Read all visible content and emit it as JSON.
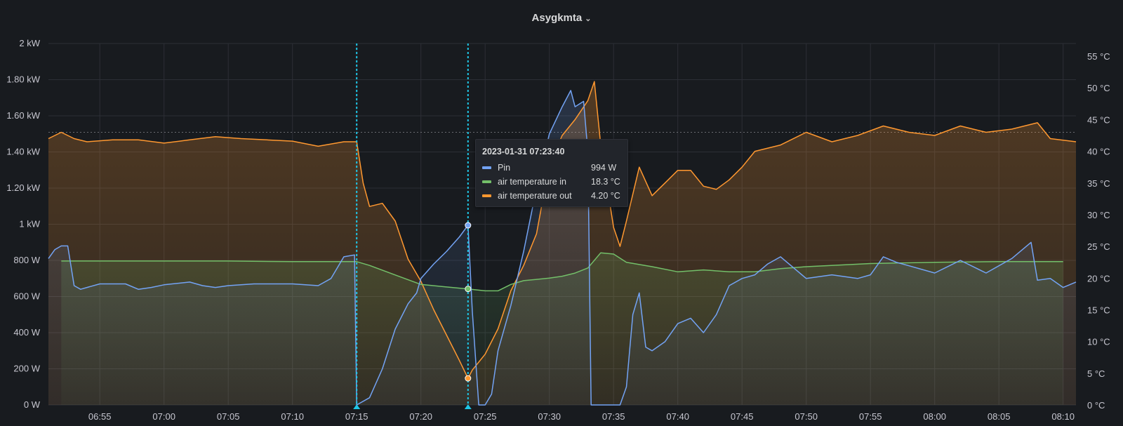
{
  "panel": {
    "title": "Asygkmta"
  },
  "tooltip": {
    "time": "2023-01-31 07:23:40",
    "rows": [
      {
        "label": "Pin",
        "value": "994 W",
        "color": "#73a3f4"
      },
      {
        "label": "air temperature in",
        "value": "18.3 °C",
        "color": "#73bf69"
      },
      {
        "label": "air temperature out",
        "value": "4.20 °C",
        "color": "#ff9830"
      }
    ]
  },
  "chart_data": {
    "type": "line",
    "xlabel": "",
    "ylabel": "",
    "grid": true,
    "x_ticks": [
      "06:55",
      "07:00",
      "07:05",
      "07:10",
      "07:15",
      "07:20",
      "07:25",
      "07:30",
      "07:35",
      "07:40",
      "07:45",
      "07:50",
      "07:55",
      "08:00",
      "08:05",
      "08:10"
    ],
    "y_left_ticks": [
      "0 W",
      "200 W",
      "400 W",
      "600 W",
      "800 W",
      "1 kW",
      "1.20 kW",
      "1.40 kW",
      "1.60 kW",
      "1.80 kW",
      "2 kW"
    ],
    "y_right_ticks": [
      "0 °C",
      "5 °C",
      "10 °C",
      "15 °C",
      "20 °C",
      "25 °C",
      "30 °C",
      "35 °C",
      "40 °C",
      "45 °C",
      "50 °C",
      "55 °C"
    ],
    "y_left_range_W": [
      0,
      2000
    ],
    "y_right_range_C": [
      0,
      57
    ],
    "x_range": [
      "06:51",
      "08:11"
    ],
    "threshold_C": 43,
    "markers": [
      "07:15:00",
      "07:23:40"
    ],
    "series": [
      {
        "name": "Pin",
        "axis": "left",
        "unit": "W",
        "color": "#73a3f4",
        "points": [
          [
            "06:51:00",
            810
          ],
          [
            "06:51:30",
            860
          ],
          [
            "06:52:00",
            880
          ],
          [
            "06:52:30",
            880
          ],
          [
            "06:53:00",
            660
          ],
          [
            "06:53:30",
            640
          ],
          [
            "06:54:00",
            650
          ],
          [
            "06:55:00",
            670
          ],
          [
            "06:56:00",
            670
          ],
          [
            "06:57:00",
            670
          ],
          [
            "06:58:00",
            640
          ],
          [
            "06:59:00",
            650
          ],
          [
            "07:00:00",
            665
          ],
          [
            "07:02:00",
            680
          ],
          [
            "07:03:00",
            660
          ],
          [
            "07:04:00",
            650
          ],
          [
            "07:05:00",
            660
          ],
          [
            "07:07:00",
            670
          ],
          [
            "07:10:00",
            670
          ],
          [
            "07:12:00",
            660
          ],
          [
            "07:13:00",
            700
          ],
          [
            "07:14:00",
            820
          ],
          [
            "07:14:50",
            830
          ],
          [
            "07:15:00",
            0
          ],
          [
            "07:16:00",
            40
          ],
          [
            "07:17:00",
            200
          ],
          [
            "07:18:00",
            420
          ],
          [
            "07:19:00",
            560
          ],
          [
            "07:19:40",
            620
          ],
          [
            "07:20:00",
            700
          ],
          [
            "07:21:00",
            780
          ],
          [
            "07:22:00",
            850
          ],
          [
            "07:23:00",
            930
          ],
          [
            "07:23:40",
            994
          ],
          [
            "07:24:00",
            520
          ],
          [
            "07:24:30",
            0
          ],
          [
            "07:25:00",
            0
          ],
          [
            "07:25:30",
            60
          ],
          [
            "07:26:00",
            300
          ],
          [
            "07:27:00",
            550
          ],
          [
            "07:28:00",
            850
          ],
          [
            "07:29:00",
            1200
          ],
          [
            "07:30:00",
            1500
          ],
          [
            "07:31:00",
            1650
          ],
          [
            "07:31:40",
            1740
          ],
          [
            "07:32:00",
            1650
          ],
          [
            "07:32:40",
            1680
          ],
          [
            "07:33:00",
            1400
          ],
          [
            "07:33:15",
            0
          ],
          [
            "07:35:30",
            0
          ],
          [
            "07:36:00",
            100
          ],
          [
            "07:36:30",
            500
          ],
          [
            "07:37:00",
            620
          ],
          [
            "07:37:30",
            320
          ],
          [
            "07:38:00",
            300
          ],
          [
            "07:39:00",
            350
          ],
          [
            "07:40:00",
            450
          ],
          [
            "07:41:00",
            480
          ],
          [
            "07:42:00",
            400
          ],
          [
            "07:43:00",
            500
          ],
          [
            "07:44:00",
            660
          ],
          [
            "07:45:00",
            700
          ],
          [
            "07:46:00",
            720
          ],
          [
            "07:47:00",
            780
          ],
          [
            "07:48:00",
            820
          ],
          [
            "07:50:00",
            700
          ],
          [
            "07:52:00",
            720
          ],
          [
            "07:54:00",
            700
          ],
          [
            "07:55:00",
            720
          ],
          [
            "07:56:00",
            820
          ],
          [
            "07:57:00",
            790
          ],
          [
            "07:58:00",
            770
          ],
          [
            "08:00:00",
            730
          ],
          [
            "08:02:00",
            800
          ],
          [
            "08:04:00",
            730
          ],
          [
            "08:06:00",
            810
          ],
          [
            "08:07:30",
            900
          ],
          [
            "08:08:00",
            690
          ],
          [
            "08:09:00",
            700
          ],
          [
            "08:10:00",
            650
          ],
          [
            "08:11:00",
            680
          ]
        ]
      },
      {
        "name": "air temperature in",
        "axis": "right",
        "unit": "°C",
        "color": "#73bf69",
        "points": [
          [
            "06:52:00",
            22.7
          ],
          [
            "06:55:00",
            22.7
          ],
          [
            "07:00:00",
            22.7
          ],
          [
            "07:05:00",
            22.7
          ],
          [
            "07:10:00",
            22.6
          ],
          [
            "07:14:00",
            22.6
          ],
          [
            "07:15:00",
            22.6
          ],
          [
            "07:16:00",
            22.0
          ],
          [
            "07:18:00",
            20.5
          ],
          [
            "07:20:00",
            19.0
          ],
          [
            "07:22:00",
            18.6
          ],
          [
            "07:23:40",
            18.3
          ],
          [
            "07:25:00",
            18.0
          ],
          [
            "07:26:00",
            18.0
          ],
          [
            "07:27:00",
            19.0
          ],
          [
            "07:28:00",
            19.6
          ],
          [
            "07:30:00",
            20.0
          ],
          [
            "07:31:00",
            20.3
          ],
          [
            "07:32:00",
            20.8
          ],
          [
            "07:33:00",
            21.6
          ],
          [
            "07:34:00",
            24.0
          ],
          [
            "07:35:00",
            23.8
          ],
          [
            "07:36:00",
            22.5
          ],
          [
            "07:38:00",
            21.8
          ],
          [
            "07:40:00",
            21.0
          ],
          [
            "07:42:00",
            21.3
          ],
          [
            "07:44:00",
            21.0
          ],
          [
            "07:46:00",
            21.0
          ],
          [
            "07:48:00",
            21.5
          ],
          [
            "07:50:00",
            21.8
          ],
          [
            "07:55:00",
            22.3
          ],
          [
            "08:00:00",
            22.5
          ],
          [
            "08:05:00",
            22.6
          ],
          [
            "08:10:00",
            22.6
          ]
        ]
      },
      {
        "name": "air temperature out",
        "axis": "right",
        "unit": "°C",
        "color": "#ff9830",
        "points": [
          [
            "06:51:00",
            42.0
          ],
          [
            "06:52:00",
            43.0
          ],
          [
            "06:53:00",
            42.0
          ],
          [
            "06:54:00",
            41.5
          ],
          [
            "06:56:00",
            41.8
          ],
          [
            "06:58:00",
            41.8
          ],
          [
            "07:00:00",
            41.3
          ],
          [
            "07:02:00",
            41.8
          ],
          [
            "07:04:00",
            42.3
          ],
          [
            "07:06:00",
            42.0
          ],
          [
            "07:08:00",
            41.8
          ],
          [
            "07:10:00",
            41.6
          ],
          [
            "07:12:00",
            40.8
          ],
          [
            "07:14:00",
            41.5
          ],
          [
            "07:15:00",
            41.5
          ],
          [
            "07:15:30",
            35.0
          ],
          [
            "07:16:00",
            31.3
          ],
          [
            "07:17:00",
            31.8
          ],
          [
            "07:18:00",
            29.0
          ],
          [
            "07:19:00",
            23.0
          ],
          [
            "07:20:00",
            19.5
          ],
          [
            "07:21:00",
            15.0
          ],
          [
            "07:22:00",
            11.0
          ],
          [
            "07:23:00",
            7.0
          ],
          [
            "07:23:40",
            4.2
          ],
          [
            "07:24:00",
            5.5
          ],
          [
            "07:25:00",
            8.0
          ],
          [
            "07:26:00",
            12.0
          ],
          [
            "07:27:00",
            18.0
          ],
          [
            "07:28:00",
            22.0
          ],
          [
            "07:29:00",
            27.0
          ],
          [
            "07:30:00",
            38.0
          ],
          [
            "07:31:00",
            42.5
          ],
          [
            "07:32:00",
            45.0
          ],
          [
            "07:33:00",
            48.0
          ],
          [
            "07:33:30",
            51.0
          ],
          [
            "07:34:00",
            41.0
          ],
          [
            "07:35:00",
            28.0
          ],
          [
            "07:35:30",
            25.0
          ],
          [
            "07:36:00",
            29.0
          ],
          [
            "07:37:00",
            37.5
          ],
          [
            "07:38:00",
            33.0
          ],
          [
            "07:39:00",
            35.0
          ],
          [
            "07:40:00",
            37.0
          ],
          [
            "07:41:00",
            37.0
          ],
          [
            "07:42:00",
            34.5
          ],
          [
            "07:43:00",
            34.0
          ],
          [
            "07:44:00",
            35.5
          ],
          [
            "07:45:00",
            37.5
          ],
          [
            "07:46:00",
            40.0
          ],
          [
            "07:48:00",
            41.0
          ],
          [
            "07:50:00",
            43.0
          ],
          [
            "07:52:00",
            41.5
          ],
          [
            "07:54:00",
            42.5
          ],
          [
            "07:56:00",
            44.0
          ],
          [
            "07:58:00",
            43.0
          ],
          [
            "08:00:00",
            42.5
          ],
          [
            "08:02:00",
            44.0
          ],
          [
            "08:04:00",
            43.0
          ],
          [
            "08:06:00",
            43.5
          ],
          [
            "08:08:00",
            44.5
          ],
          [
            "08:09:00",
            42.0
          ],
          [
            "08:11:00",
            41.5
          ]
        ]
      }
    ]
  }
}
